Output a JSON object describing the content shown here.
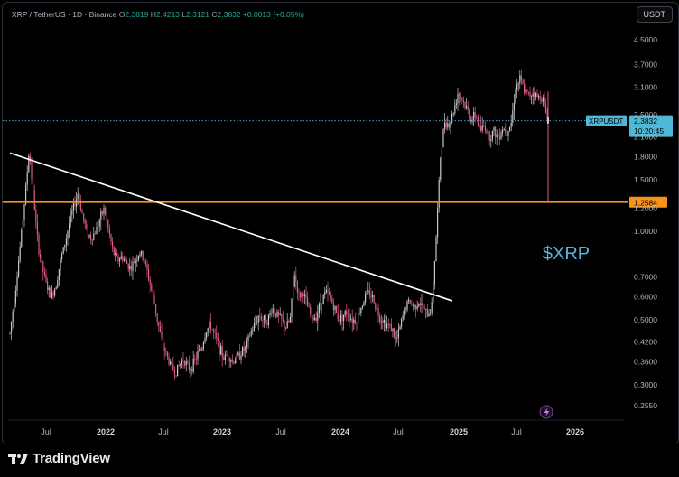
{
  "window": {
    "currency_button": "USDT"
  },
  "legend": {
    "symbol": "XRP / TetherUS · 1D · Binance",
    "open_label": "O",
    "open": "2.3819",
    "high_label": "H",
    "high": "2.4213",
    "low_label": "L",
    "low": "2.3121",
    "close_label": "C",
    "close": "2.3832",
    "change": "+0.0013 (+0.05%)"
  },
  "watermark_text": "$XRP",
  "price_tag": {
    "symbol": "XRPUSDT",
    "price": "2.3832",
    "countdown": "10:20:45"
  },
  "level_tag": "1.2584",
  "colors": {
    "level_line": "#f7931a",
    "trendline": "#ffffff",
    "price_tag": "#4fb8d8",
    "up_candle": "#c7c7c7",
    "down_candle": "#e05a8a",
    "watermark": "#57b5da"
  },
  "footer": {
    "brand": "TradingView"
  },
  "chart_data": {
    "type": "candlestick",
    "scale": "log",
    "y_ticks": [
      4.5,
      3.7,
      3.1,
      2.5,
      2.1,
      1.8,
      1.5,
      1.2,
      1.0,
      0.7,
      0.6,
      0.5,
      0.42,
      0.36,
      0.3,
      0.255
    ],
    "y_tick_labels": [
      "4.5000",
      "3.7000",
      "3.1000",
      "2.5000",
      "2.1000",
      "1.8000",
      "1.5000",
      "1.2000",
      "1.0000",
      "0.7000",
      "0.6000",
      "0.5000",
      "0.4200",
      "0.3600",
      "0.3000",
      "0.2550"
    ],
    "x_ticks": [
      {
        "label": "Jul",
        "year": false
      },
      {
        "label": "2022",
        "year": true
      },
      {
        "label": "Jul",
        "year": false
      },
      {
        "label": "2023",
        "year": true
      },
      {
        "label": "Jul",
        "year": false
      },
      {
        "label": "2024",
        "year": true
      },
      {
        "label": "Jul",
        "year": false
      },
      {
        "label": "2025",
        "year": true
      },
      {
        "label": "Jul",
        "year": false
      },
      {
        "label": "2026",
        "year": true
      }
    ],
    "horizontal_level": 1.2584,
    "last_price": 2.3832,
    "trendline": {
      "start": {
        "date": "2021-04",
        "price": 1.85
      },
      "end": {
        "date": "2024-12",
        "price": 0.58
      }
    },
    "price_path": [
      [
        0,
        0.45
      ],
      [
        4,
        0.65
      ],
      [
        8,
        1.0
      ],
      [
        11,
        1.45
      ],
      [
        13,
        1.9
      ],
      [
        16,
        1.3
      ],
      [
        19,
        0.9
      ],
      [
        22,
        0.75
      ],
      [
        25,
        0.65
      ],
      [
        28,
        0.6
      ],
      [
        31,
        0.65
      ],
      [
        34,
        0.78
      ],
      [
        37,
        0.9
      ],
      [
        40,
        1.05
      ],
      [
        43,
        1.2
      ],
      [
        46,
        1.35
      ],
      [
        49,
        1.15
      ],
      [
        52,
        1.0
      ],
      [
        55,
        0.95
      ],
      [
        58,
        1.0
      ],
      [
        61,
        1.1
      ],
      [
        64,
        1.2
      ],
      [
        67,
        1.0
      ],
      [
        70,
        0.85
      ],
      [
        73,
        0.8
      ],
      [
        76,
        0.82
      ],
      [
        79,
        0.78
      ],
      [
        82,
        0.75
      ],
      [
        85,
        0.8
      ],
      [
        88,
        0.85
      ],
      [
        91,
        0.8
      ],
      [
        94,
        0.7
      ],
      [
        97,
        0.6
      ],
      [
        100,
        0.5
      ],
      [
        103,
        0.42
      ],
      [
        106,
        0.38
      ],
      [
        109,
        0.35
      ],
      [
        112,
        0.33
      ],
      [
        115,
        0.35
      ],
      [
        118,
        0.37
      ],
      [
        121,
        0.34
      ],
      [
        124,
        0.35
      ],
      [
        127,
        0.38
      ],
      [
        130,
        0.4
      ],
      [
        133,
        0.46
      ],
      [
        136,
        0.48
      ],
      [
        139,
        0.44
      ],
      [
        142,
        0.4
      ],
      [
        145,
        0.37
      ],
      [
        148,
        0.38
      ],
      [
        151,
        0.36
      ],
      [
        154,
        0.37
      ],
      [
        157,
        0.39
      ],
      [
        160,
        0.4
      ],
      [
        163,
        0.45
      ],
      [
        166,
        0.48
      ],
      [
        169,
        0.52
      ],
      [
        172,
        0.5
      ],
      [
        175,
        0.5
      ],
      [
        178,
        0.55
      ],
      [
        181,
        0.52
      ],
      [
        184,
        0.5
      ],
      [
        187,
        0.47
      ],
      [
        190,
        0.5
      ],
      [
        193,
        0.72
      ],
      [
        196,
        0.6
      ],
      [
        199,
        0.62
      ],
      [
        202,
        0.55
      ],
      [
        205,
        0.5
      ],
      [
        208,
        0.52
      ],
      [
        211,
        0.58
      ],
      [
        214,
        0.62
      ],
      [
        217,
        0.6
      ],
      [
        220,
        0.55
      ],
      [
        223,
        0.5
      ],
      [
        226,
        0.52
      ],
      [
        229,
        0.53
      ],
      [
        232,
        0.5
      ],
      [
        235,
        0.5
      ],
      [
        238,
        0.55
      ],
      [
        241,
        0.6
      ],
      [
        244,
        0.62
      ],
      [
        247,
        0.58
      ],
      [
        250,
        0.52
      ],
      [
        253,
        0.5
      ],
      [
        256,
        0.48
      ],
      [
        259,
        0.47
      ],
      [
        262,
        0.42
      ],
      [
        265,
        0.48
      ],
      [
        268,
        0.55
      ],
      [
        271,
        0.58
      ],
      [
        274,
        0.55
      ],
      [
        277,
        0.58
      ],
      [
        280,
        0.55
      ],
      [
        283,
        0.52
      ],
      [
        286,
        0.55
      ],
      [
        289,
        0.95
      ],
      [
        292,
        1.8
      ],
      [
        295,
        2.4
      ],
      [
        298,
        2.3
      ],
      [
        301,
        2.6
      ],
      [
        304,
        3.0
      ],
      [
        307,
        2.8
      ],
      [
        310,
        2.6
      ],
      [
        313,
        2.4
      ],
      [
        316,
        2.5
      ],
      [
        319,
        2.2
      ],
      [
        322,
        2.3
      ],
      [
        325,
        2.1
      ],
      [
        328,
        2.2
      ],
      [
        331,
        2.1
      ],
      [
        334,
        2.25
      ],
      [
        337,
        2.2
      ],
      [
        340,
        2.35
      ],
      [
        343,
        3.1
      ],
      [
        346,
        3.3
      ],
      [
        349,
        3.0
      ],
      [
        352,
        2.9
      ],
      [
        355,
        3.0
      ],
      [
        358,
        2.85
      ],
      [
        361,
        2.9
      ],
      [
        363,
        2.6
      ],
      [
        365,
        2.38
      ]
    ]
  }
}
